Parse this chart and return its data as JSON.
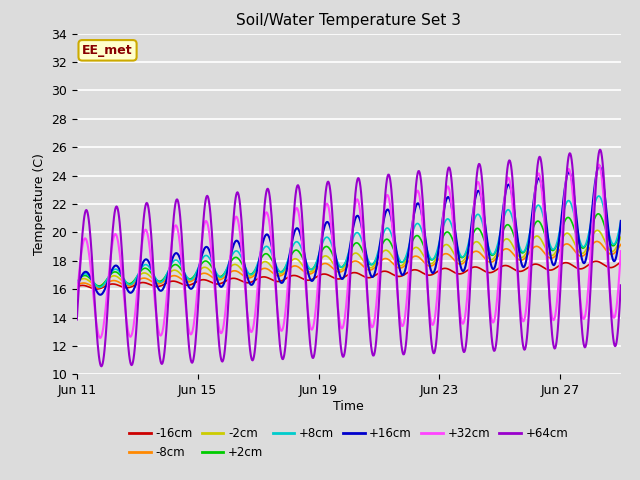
{
  "title": "Soil/Water Temperature Set 3",
  "xlabel": "Time",
  "ylabel": "Temperature (C)",
  "ylim": [
    10,
    34
  ],
  "yticks": [
    10,
    12,
    14,
    16,
    18,
    20,
    22,
    24,
    26,
    28,
    30,
    32,
    34
  ],
  "bg_color": "#dcdcdc",
  "plot_bg_color": "#dcdcdc",
  "annotation_text": "EE_met",
  "annotation_bg": "#ffffcc",
  "annotation_edge": "#ccaa00",
  "annotation_text_color": "#880000",
  "series_colors": {
    "-16cm": "#cc0000",
    "-8cm": "#ff8800",
    "-2cm": "#cccc00",
    "+2cm": "#00cc00",
    "+8cm": "#00cccc",
    "+16cm": "#0000cc",
    "+32cm": "#ff44ff",
    "+64cm": "#9900cc"
  },
  "legend_order": [
    "-16cm",
    "-8cm",
    "-2cm",
    "+2cm",
    "+8cm",
    "+16cm",
    "+32cm",
    "+64cm"
  ],
  "x_ticks_days": [
    11,
    15,
    19,
    23,
    27
  ],
  "x_tick_labels": [
    "Jun 11",
    "Jun 15",
    "Jun 19",
    "Jun 23",
    "Jun 27"
  ],
  "figsize": [
    6.4,
    4.8
  ],
  "dpi": 100
}
